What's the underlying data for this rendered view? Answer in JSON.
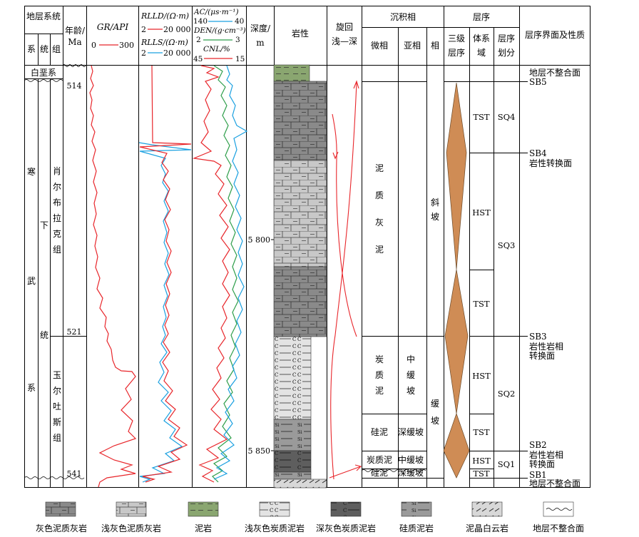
{
  "header": {
    "strat_system": "地层系统",
    "system": "系",
    "series": "统",
    "group": "组",
    "age_line1": "年龄/",
    "age_line2": "Ma",
    "gr_label": "GR/API",
    "gr_min": "0",
    "gr_max": "300",
    "rlld_label": "RLLD/(Ω·m)",
    "rlld_min": "2",
    "rlld_max": "20 000",
    "rlls_label": "RLLS/(Ω·m)",
    "rlls_min": "2",
    "rlls_max": "20 000",
    "ac_label": "AC/(μs·m⁻¹)",
    "ac_min": "140",
    "ac_max": "40",
    "den_label": "DEN/(g·cm⁻³)",
    "den_min": "2",
    "den_max": "3",
    "cnl_label": "CNL/%",
    "cnl_min": "45",
    "cnl_max": "15",
    "depth_line1": "深度/",
    "depth_line2": "m",
    "lithology": "岩性",
    "cycle_line1": "旋回",
    "cycle_line2": "浅—深",
    "facies_group": "沉积相",
    "microfacies": "微相",
    "subfacies": "亚相",
    "facies": "相",
    "sequence_group": "层序",
    "third_order": "三级",
    "third_order2": "层序",
    "systems_tract": "体系",
    "systems_tract2": "域",
    "seq_division": "层序",
    "seq_division2": "划分",
    "boundary": "层序界面及性质"
  },
  "strat": {
    "cretaceous": "白垩系",
    "system_chars": [
      "寒",
      "武",
      "系"
    ],
    "series_chars": [
      "下",
      "统"
    ],
    "group1_chars": [
      "肖",
      "尔",
      "布",
      "拉",
      "克",
      "组"
    ],
    "group2_chars": [
      "玉",
      "尔",
      "吐",
      "斯",
      "组"
    ],
    "ages": [
      "514",
      "521",
      "541"
    ]
  },
  "depths": [
    "5 800",
    "5 850"
  ],
  "facies_labels": {
    "micro1_chars": [
      "泥",
      "质",
      "灰",
      "泥"
    ],
    "micro2_chars": [
      "炭",
      "质",
      "泥"
    ],
    "micro3": "硅泥",
    "micro4": "炭质泥",
    "micro5": "硅泥",
    "sub1_chars": [
      "中",
      "缓",
      "坡"
    ],
    "sub2": "深缓坡",
    "sub3": "中缓坡",
    "sub4": "深缓坡",
    "facies1_chars": [
      "斜",
      "坡"
    ],
    "facies2_chars": [
      "缓",
      "坡"
    ]
  },
  "tracts": [
    "TST",
    "HST",
    "TST",
    "HST",
    "TST",
    "HST",
    "TST"
  ],
  "sequences": [
    "SQ4",
    "SQ3",
    "SQ2",
    "SQ1"
  ],
  "boundaries": {
    "top": "地层不整合面",
    "sb5": "SB5",
    "sb4": "SB4",
    "sb4_desc": "岩性转换面",
    "sb3": "SB3",
    "sb3_desc1": "岩性岩相",
    "sb3_desc2": "转换面",
    "sb2": "SB2",
    "sb2_desc1": "岩性岩相",
    "sb2_desc2": "转换面",
    "sb1": "SB1",
    "bottom": "地层不整合面"
  },
  "legend": [
    "灰色泥质灰岩",
    "浅灰色泥质灰岩",
    "泥岩",
    "浅灰色炭质泥岩",
    "深灰色炭质泥岩",
    "硅质泥岩",
    "泥晶白云岩",
    "地层不整合面"
  ],
  "colors": {
    "gr": "#e8262b",
    "rlld": "#e8262b",
    "rlls": "#1aa0e0",
    "ac": "#e8262b",
    "den": "#2e9e4a",
    "cnl": "#1aa0e0",
    "diamond": "#cf8c55",
    "limestone_dark": "#8a8a8a",
    "limestone_light": "#c8c8c8",
    "mudstone": "#8aa670",
    "carb_light": "#e3e3e3",
    "carb_dark": "#5e5e5e",
    "siliceous": "#9a9a9a"
  }
}
